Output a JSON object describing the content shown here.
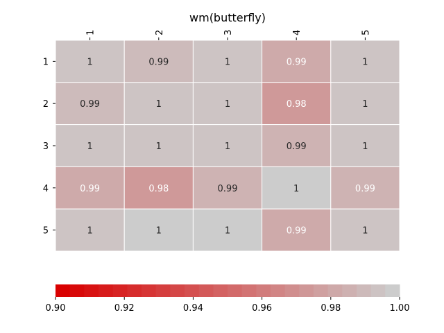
{
  "chart_data": {
    "type": "heatmap",
    "title": "wm(butterfly)",
    "x_categories": [
      "1",
      "2",
      "3",
      "4",
      "5"
    ],
    "y_categories": [
      "1",
      "2",
      "3",
      "4",
      "5"
    ],
    "values": [
      [
        0.999,
        0.994,
        0.998,
        0.986,
        0.997
      ],
      [
        0.993,
        0.999,
        0.997,
        0.979,
        0.999
      ],
      [
        0.999,
        0.998,
        0.999,
        0.99,
        0.999
      ],
      [
        0.987,
        0.979,
        0.99,
        1.0,
        0.989
      ],
      [
        0.996,
        1.0,
        1.0,
        0.987,
        0.998
      ]
    ],
    "labels": [
      [
        "1",
        "0.99",
        "1",
        "0.99",
        "1"
      ],
      [
        "0.99",
        "1",
        "1",
        "0.98",
        "1"
      ],
      [
        "1",
        "1",
        "1",
        "0.99",
        "1"
      ],
      [
        "0.99",
        "0.98",
        "0.99",
        "1",
        "0.99"
      ],
      [
        "1",
        "1",
        "1",
        "0.99",
        "1"
      ]
    ],
    "label_colors": [
      [
        "dark",
        "dark",
        "dark",
        "light",
        "dark"
      ],
      [
        "dark",
        "dark",
        "dark",
        "light",
        "dark"
      ],
      [
        "dark",
        "dark",
        "dark",
        "dark",
        "dark"
      ],
      [
        "light",
        "light",
        "dark",
        "dark",
        "light"
      ],
      [
        "dark",
        "dark",
        "dark",
        "light",
        "dark"
      ]
    ],
    "colorbar": {
      "min": 0.9,
      "max": 1.0,
      "ticks": [
        "0.90",
        "0.92",
        "0.94",
        "0.96",
        "0.98",
        "1.00"
      ],
      "orientation": "horizontal",
      "color_low": "#d90000",
      "color_high": "#cccccc"
    },
    "x_axis_position": "top",
    "grid_line_color": "#ffffff"
  }
}
